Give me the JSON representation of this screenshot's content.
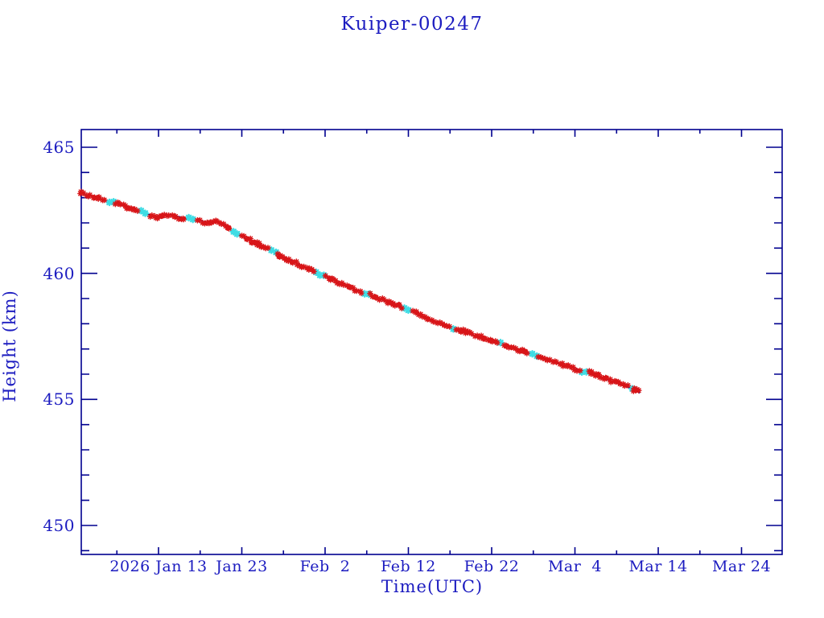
{
  "window": {
    "background": "#ffffff"
  },
  "colors": {
    "axis_line": "#00008f",
    "text_blue": "#1c1cc0",
    "trend_line": "#00008b",
    "observed_red": "#d81518",
    "predicted_cyan": "#3fdce4"
  },
  "chart_data": {
    "type": "line",
    "title": "Kuiper-00247",
    "xlabel": "Time(UTC)",
    "ylabel": "Height (km)",
    "grid": false,
    "legend": null,
    "x_tick_labels": [
      "2026 Jan 13",
      "Jan 23",
      "Feb  2",
      "Feb 12",
      "Feb 22",
      "Mar  4",
      "Mar 14",
      "Mar 24"
    ],
    "x_tick_day_of_year": [
      13,
      23,
      33,
      43,
      53,
      63,
      73,
      83
    ],
    "x_minor_tick_day_of_year": [
      8,
      18,
      28,
      38,
      48,
      58,
      68,
      78
    ],
    "x_range_day_of_year": [
      3.72,
      87.88
    ],
    "y_tick_labels": [
      "465",
      "460",
      "455",
      "450"
    ],
    "y_ticks": [
      465,
      460,
      455,
      450
    ],
    "y_minor_step": 1,
    "ylim": [
      448.85,
      465.7
    ],
    "series": [
      {
        "name": "trend-line",
        "style": "solid-line",
        "color": "#00008b"
      },
      {
        "name": "predicted-ephemeris",
        "style": "asterisk-markers",
        "color": "#3fdce4"
      },
      {
        "name": "observed-height",
        "style": "asterisk-markers",
        "color": "#d81518"
      }
    ],
    "points_day_height_km": [
      [
        3.72,
        463.17
      ],
      [
        5,
        463.05
      ],
      [
        6.5,
        462.92
      ],
      [
        8,
        462.76
      ],
      [
        9.5,
        462.6
      ],
      [
        11,
        462.44
      ],
      [
        12.2,
        462.3
      ],
      [
        13,
        462.26
      ],
      [
        13.7,
        462.34
      ],
      [
        14.5,
        462.32
      ],
      [
        15.5,
        462.25
      ],
      [
        16.8,
        462.14
      ],
      [
        18,
        462.07
      ],
      [
        19.2,
        462.03
      ],
      [
        19.9,
        462.07
      ],
      [
        20.7,
        461.96
      ],
      [
        21.7,
        461.74
      ],
      [
        23,
        461.47
      ],
      [
        24.5,
        461.22
      ],
      [
        26,
        460.98
      ],
      [
        27.5,
        460.74
      ],
      [
        29,
        460.5
      ],
      [
        30.5,
        460.27
      ],
      [
        32,
        460.03
      ],
      [
        33.5,
        459.8
      ],
      [
        35,
        459.58
      ],
      [
        36.5,
        459.38
      ],
      [
        38,
        459.18
      ],
      [
        39.5,
        458.98
      ],
      [
        41,
        458.79
      ],
      [
        42.5,
        458.6
      ],
      [
        44,
        458.4
      ],
      [
        45.5,
        458.18
      ],
      [
        47,
        457.98
      ],
      [
        48.5,
        457.8
      ],
      [
        50,
        457.63
      ],
      [
        51.5,
        457.47
      ],
      [
        53,
        457.32
      ],
      [
        54.5,
        457.16
      ],
      [
        56,
        457.0
      ],
      [
        57.5,
        456.84
      ],
      [
        59,
        456.66
      ],
      [
        60.5,
        456.5
      ],
      [
        62,
        456.34
      ],
      [
        63.5,
        456.17
      ],
      [
        65,
        455.99
      ],
      [
        66.5,
        455.82
      ],
      [
        68,
        455.64
      ],
      [
        69.5,
        455.46
      ],
      [
        70.3,
        455.34
      ],
      [
        70.8,
        455.25
      ]
    ]
  }
}
